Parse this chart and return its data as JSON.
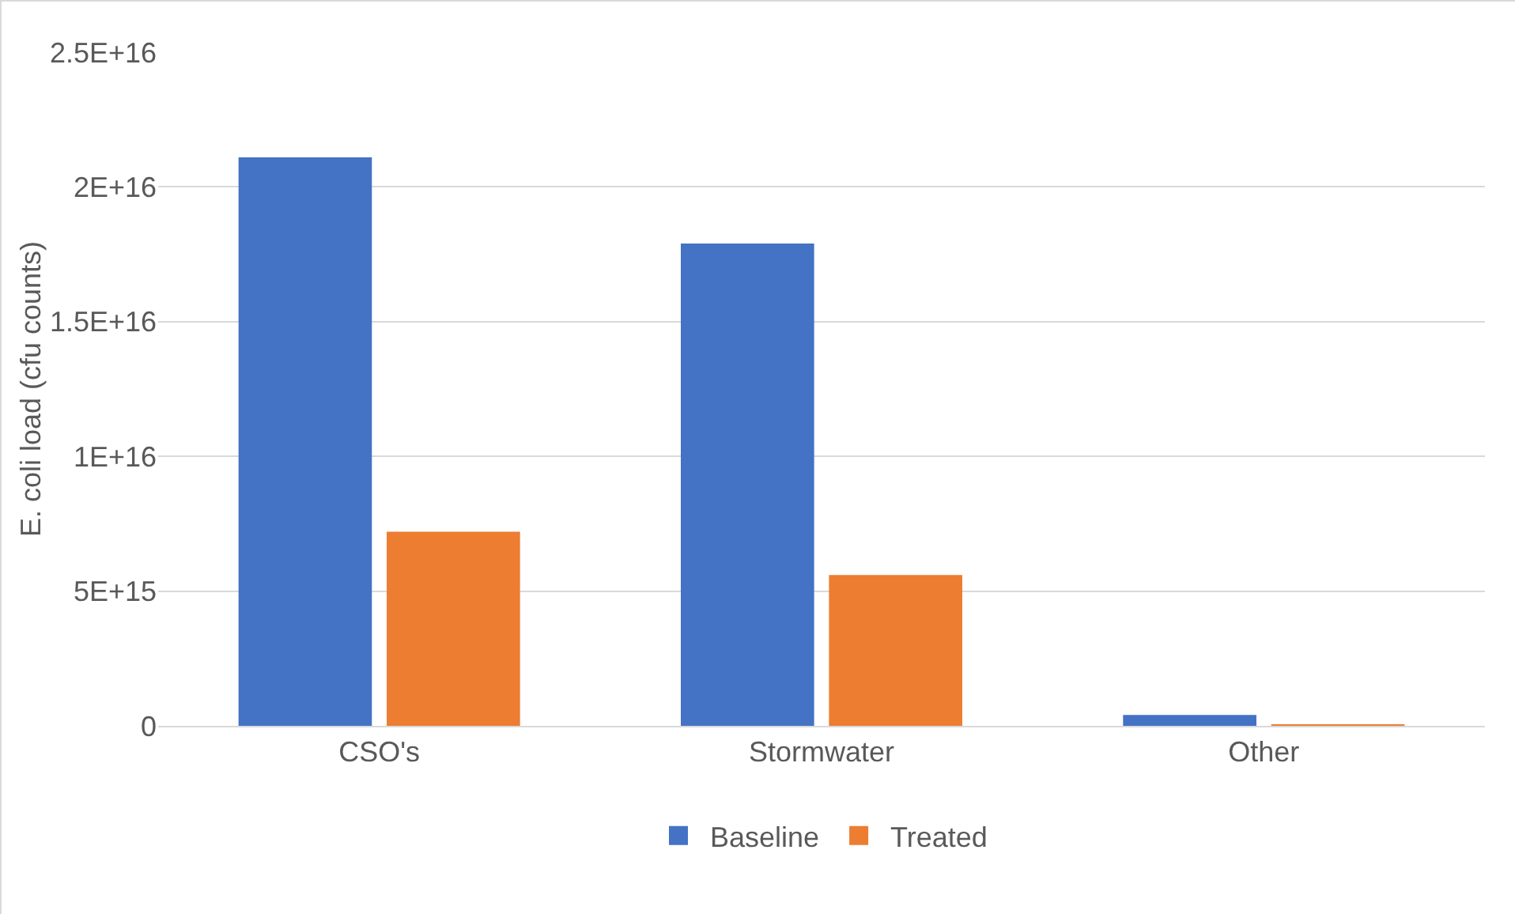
{
  "chart_data": {
    "type": "bar",
    "ylabel": "E. coli load (cfu counts)",
    "categories": [
      "CSO's",
      "Stormwater",
      "Other"
    ],
    "series": [
      {
        "name": "Baseline",
        "color": "#4472c4",
        "values": [
          2.11e+16,
          1.79e+16,
          400000000000000.0
        ]
      },
      {
        "name": "Treated",
        "color": "#ed7d31",
        "values": [
          7200000000000000.0,
          5600000000000000.0,
          50000000000000.0
        ]
      }
    ],
    "ylim": [
      0,
      2.5e+16
    ],
    "yticks": [
      0,
      {
        "value": 5000000000000000.0,
        "label": "5E+15"
      },
      {
        "value": 1e+16,
        "label": "1E+16"
      },
      {
        "value": 1.5e+16,
        "label": "1.5E+16"
      },
      {
        "value": 2e+16,
        "label": "2E+16"
      },
      {
        "value": 2.5e+16,
        "label": "2.5E+16"
      }
    ],
    "grid": "y",
    "legend": "bottom"
  }
}
